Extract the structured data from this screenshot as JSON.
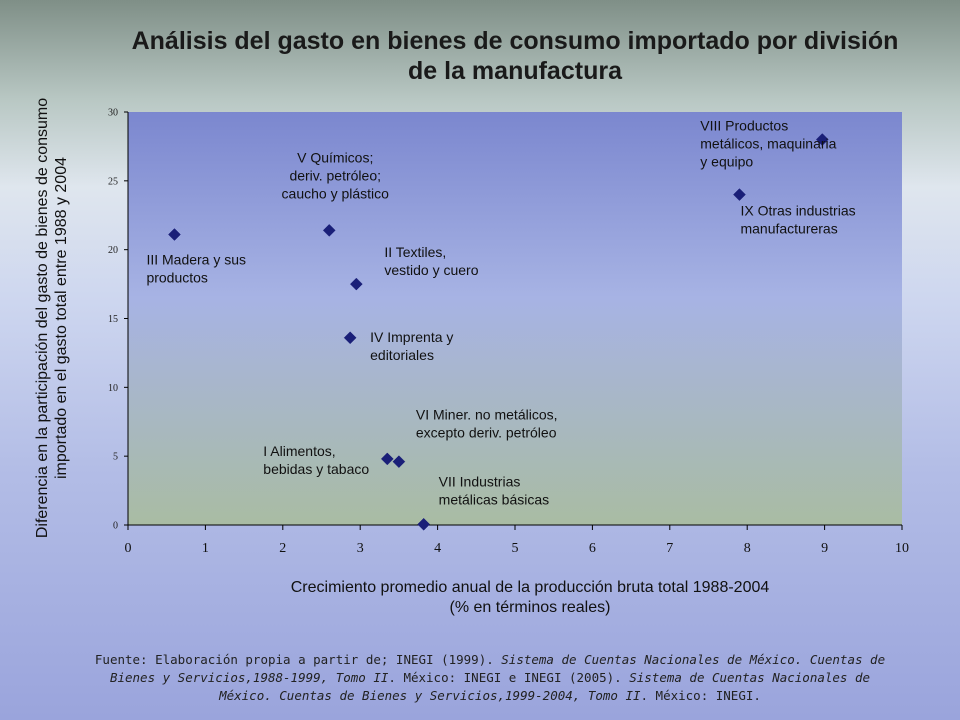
{
  "colors": {
    "plot_top": "#7b87cf",
    "plot_mid": "#a7b3e4",
    "plot_bottom": "#a9bca3",
    "marker": "#1a1f78"
  },
  "chart_data": {
    "type": "scatter",
    "title": "Análisis del gasto en bienes de consumo importado por división de la manufactura",
    "xlabel_line1": "Crecimiento promedio anual de la producción bruta total 1988-2004",
    "xlabel_line2": "(% en términos reales)",
    "ylabel_line1": "Diferencia en la participación del gasto de bienes de consumo",
    "ylabel_line2": "importado en el gasto total entre 1988 y 2004",
    "xlim": [
      0,
      10
    ],
    "ylim": [
      0,
      30
    ],
    "x_ticks": [
      "0",
      "1",
      "2",
      "3",
      "4",
      "5",
      "6",
      "7",
      "8",
      "9",
      "10"
    ],
    "y_ticks": [
      "0",
      "5",
      "10",
      "15",
      "20",
      "25",
      "30"
    ],
    "grid": false,
    "marker": "diamond",
    "points": [
      {
        "label": [
          "I Alimentos,",
          "bebidas y tabaco"
        ],
        "x": 3.35,
        "y": 4.8
      },
      {
        "label": [
          "II Textiles,",
          "vestido y cuero"
        ],
        "x": 2.95,
        "y": 17.5
      },
      {
        "label": [
          "III Madera y sus",
          "productos"
        ],
        "x": 0.6,
        "y": 21.1
      },
      {
        "label": [
          "IV Imprenta y",
          "editoriales"
        ],
        "x": 2.87,
        "y": 13.6
      },
      {
        "label": [
          "V Químicos;",
          "deriv. petróleo;",
          "caucho y plástico"
        ],
        "x": 2.6,
        "y": 21.4
      },
      {
        "label": [
          "VI Miner. no metálicos,",
          "excepto deriv. petróleo"
        ],
        "x": 3.5,
        "y": 4.6
      },
      {
        "label": [
          "VII Industrias",
          "metálicas básicas"
        ],
        "x": 3.82,
        "y": 0.05
      },
      {
        "label": [
          "VIII Productos",
          "metálicos, maquinaria",
          "y equipo"
        ],
        "x": 8.97,
        "y": 28.0
      },
      {
        "label": [
          "IX Otras industrias",
          "manufactureras"
        ],
        "x": 7.9,
        "y": 24.0
      }
    ]
  },
  "source": {
    "p1": "Fuente: Elaboración propia a partir de; INEGI (1999). ",
    "i1": "Sistema de Cuentas Nacionales de México. Cuentas de Bienes y Servicios,1988-1999, Tomo II",
    "p2": ". México: INEGI e INEGI (2005). ",
    "i2": "Sistema de Cuentas Nacionales de México. Cuentas de Bienes y Servicios,1999-2004, Tomo II",
    "p3": ". México: INEGI."
  }
}
